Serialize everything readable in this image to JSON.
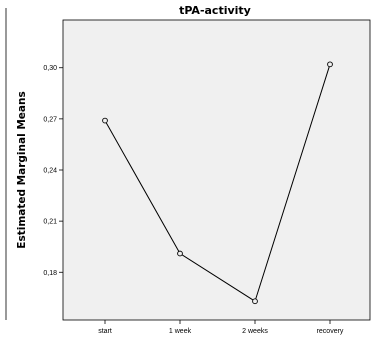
{
  "chart_data": {
    "type": "line",
    "title": "tPA-activity",
    "xlabel": "",
    "ylabel": "Estimated Marginal Means",
    "categories": [
      "start",
      "1 week",
      "2 weeks",
      "recovery"
    ],
    "series": [
      {
        "values": [
          0.269,
          0.191,
          0.163,
          0.302
        ]
      }
    ],
    "yticks": [
      0.18,
      0.21,
      0.24,
      0.27,
      0.3
    ],
    "ytick_labels": [
      "0,18",
      "0,21",
      "0,24",
      "0,27",
      "0,30"
    ],
    "ylim": [
      0.152,
      0.328
    ],
    "grid": false,
    "marker": "open-circle",
    "plot_background": "#f0f0f0",
    "line_color": "#000000"
  }
}
